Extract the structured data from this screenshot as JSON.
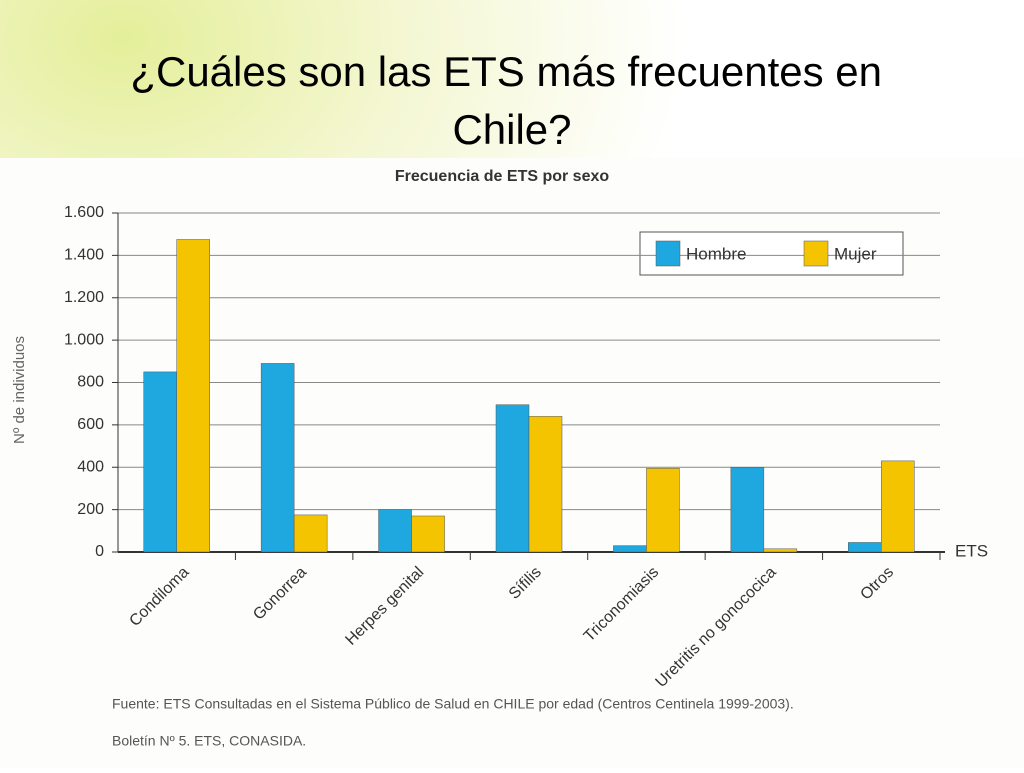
{
  "slide_title": "¿Cuáles son las ETS más frecuentes en Chile?",
  "chart_data": {
    "type": "bar",
    "title": "Frecuencia de ETS por sexo",
    "ylabel": "Nº de individuos",
    "xlabel": "ETS",
    "categories": [
      "Condiloma",
      "Gonorrea",
      "Herpes genital",
      "Sífilis",
      "Triconomiasis",
      "Uretritis no gonococica",
      "Otros"
    ],
    "series": [
      {
        "name": "Hombre",
        "color": "#1fa8df",
        "values": [
          850,
          890,
          200,
          695,
          30,
          400,
          45
        ]
      },
      {
        "name": "Mujer",
        "color": "#f5c400",
        "values": [
          1475,
          175,
          170,
          640,
          395,
          15,
          430
        ]
      }
    ],
    "ylim": [
      0,
      1600
    ],
    "yticks": [
      0,
      200,
      400,
      600,
      800,
      {
        "value": 1000,
        "label": "1.000"
      },
      {
        "value": 1200,
        "label": "1.200"
      },
      {
        "value": 1400,
        "label": "1.400"
      },
      {
        "value": 1600,
        "label": "1.600"
      }
    ],
    "grid": true,
    "legend": "upper right"
  },
  "source": [
    "Fuente: ETS Consultadas en el Sistema Público de Salud en CHILE por edad (Centros Centinela 1999-2003).",
    "Boletín Nº 5. ETS, CONASIDA."
  ]
}
